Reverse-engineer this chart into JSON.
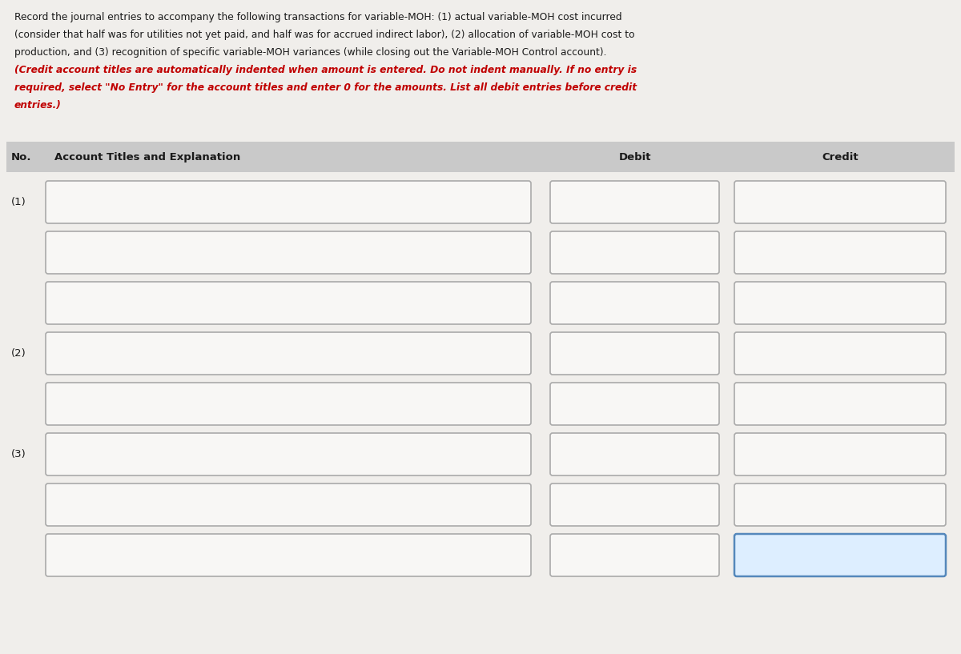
{
  "bg_color": "#f0eeeb",
  "header_bg": "#c9c9c9",
  "box_bg": "#f8f7f5",
  "box_border": "#aaaaaa",
  "highlight_box_border": "#5588bb",
  "highlight_box_bg": "#ddeeff",
  "text_color_black": "#1a1a1a",
  "text_color_red": "#c00000",
  "title_lines_black": [
    "Record the journal entries to accompany the following transactions for variable-MOH: (1) actual variable-MOH cost incurred",
    "(consider that half was for utilities not yet paid, and half was for accrued indirect labor), (2) allocation of variable-MOH cost to",
    "production, and (3) recognition of specific variable-MOH variances (while closing out the Variable-MOH Control account)."
  ],
  "title_lines_red": [
    "(Credit account titles are automatically indented when amount is entered. Do not indent manually. If no entry is",
    "required, select \"No Entry\" for the account titles and enter 0 for the amounts. List all debit entries before credit",
    "entries.)"
  ],
  "header_label_no": "No.",
  "header_label_account": "Account Titles and Explanation",
  "header_label_debit": "Debit",
  "header_label_credit": "Credit",
  "row_labels": [
    "(1)",
    "",
    "",
    "(2)",
    "",
    "(3)",
    "",
    ""
  ],
  "highlight_row": 7,
  "figsize": [
    12.0,
    8.17
  ],
  "dpi": 100
}
